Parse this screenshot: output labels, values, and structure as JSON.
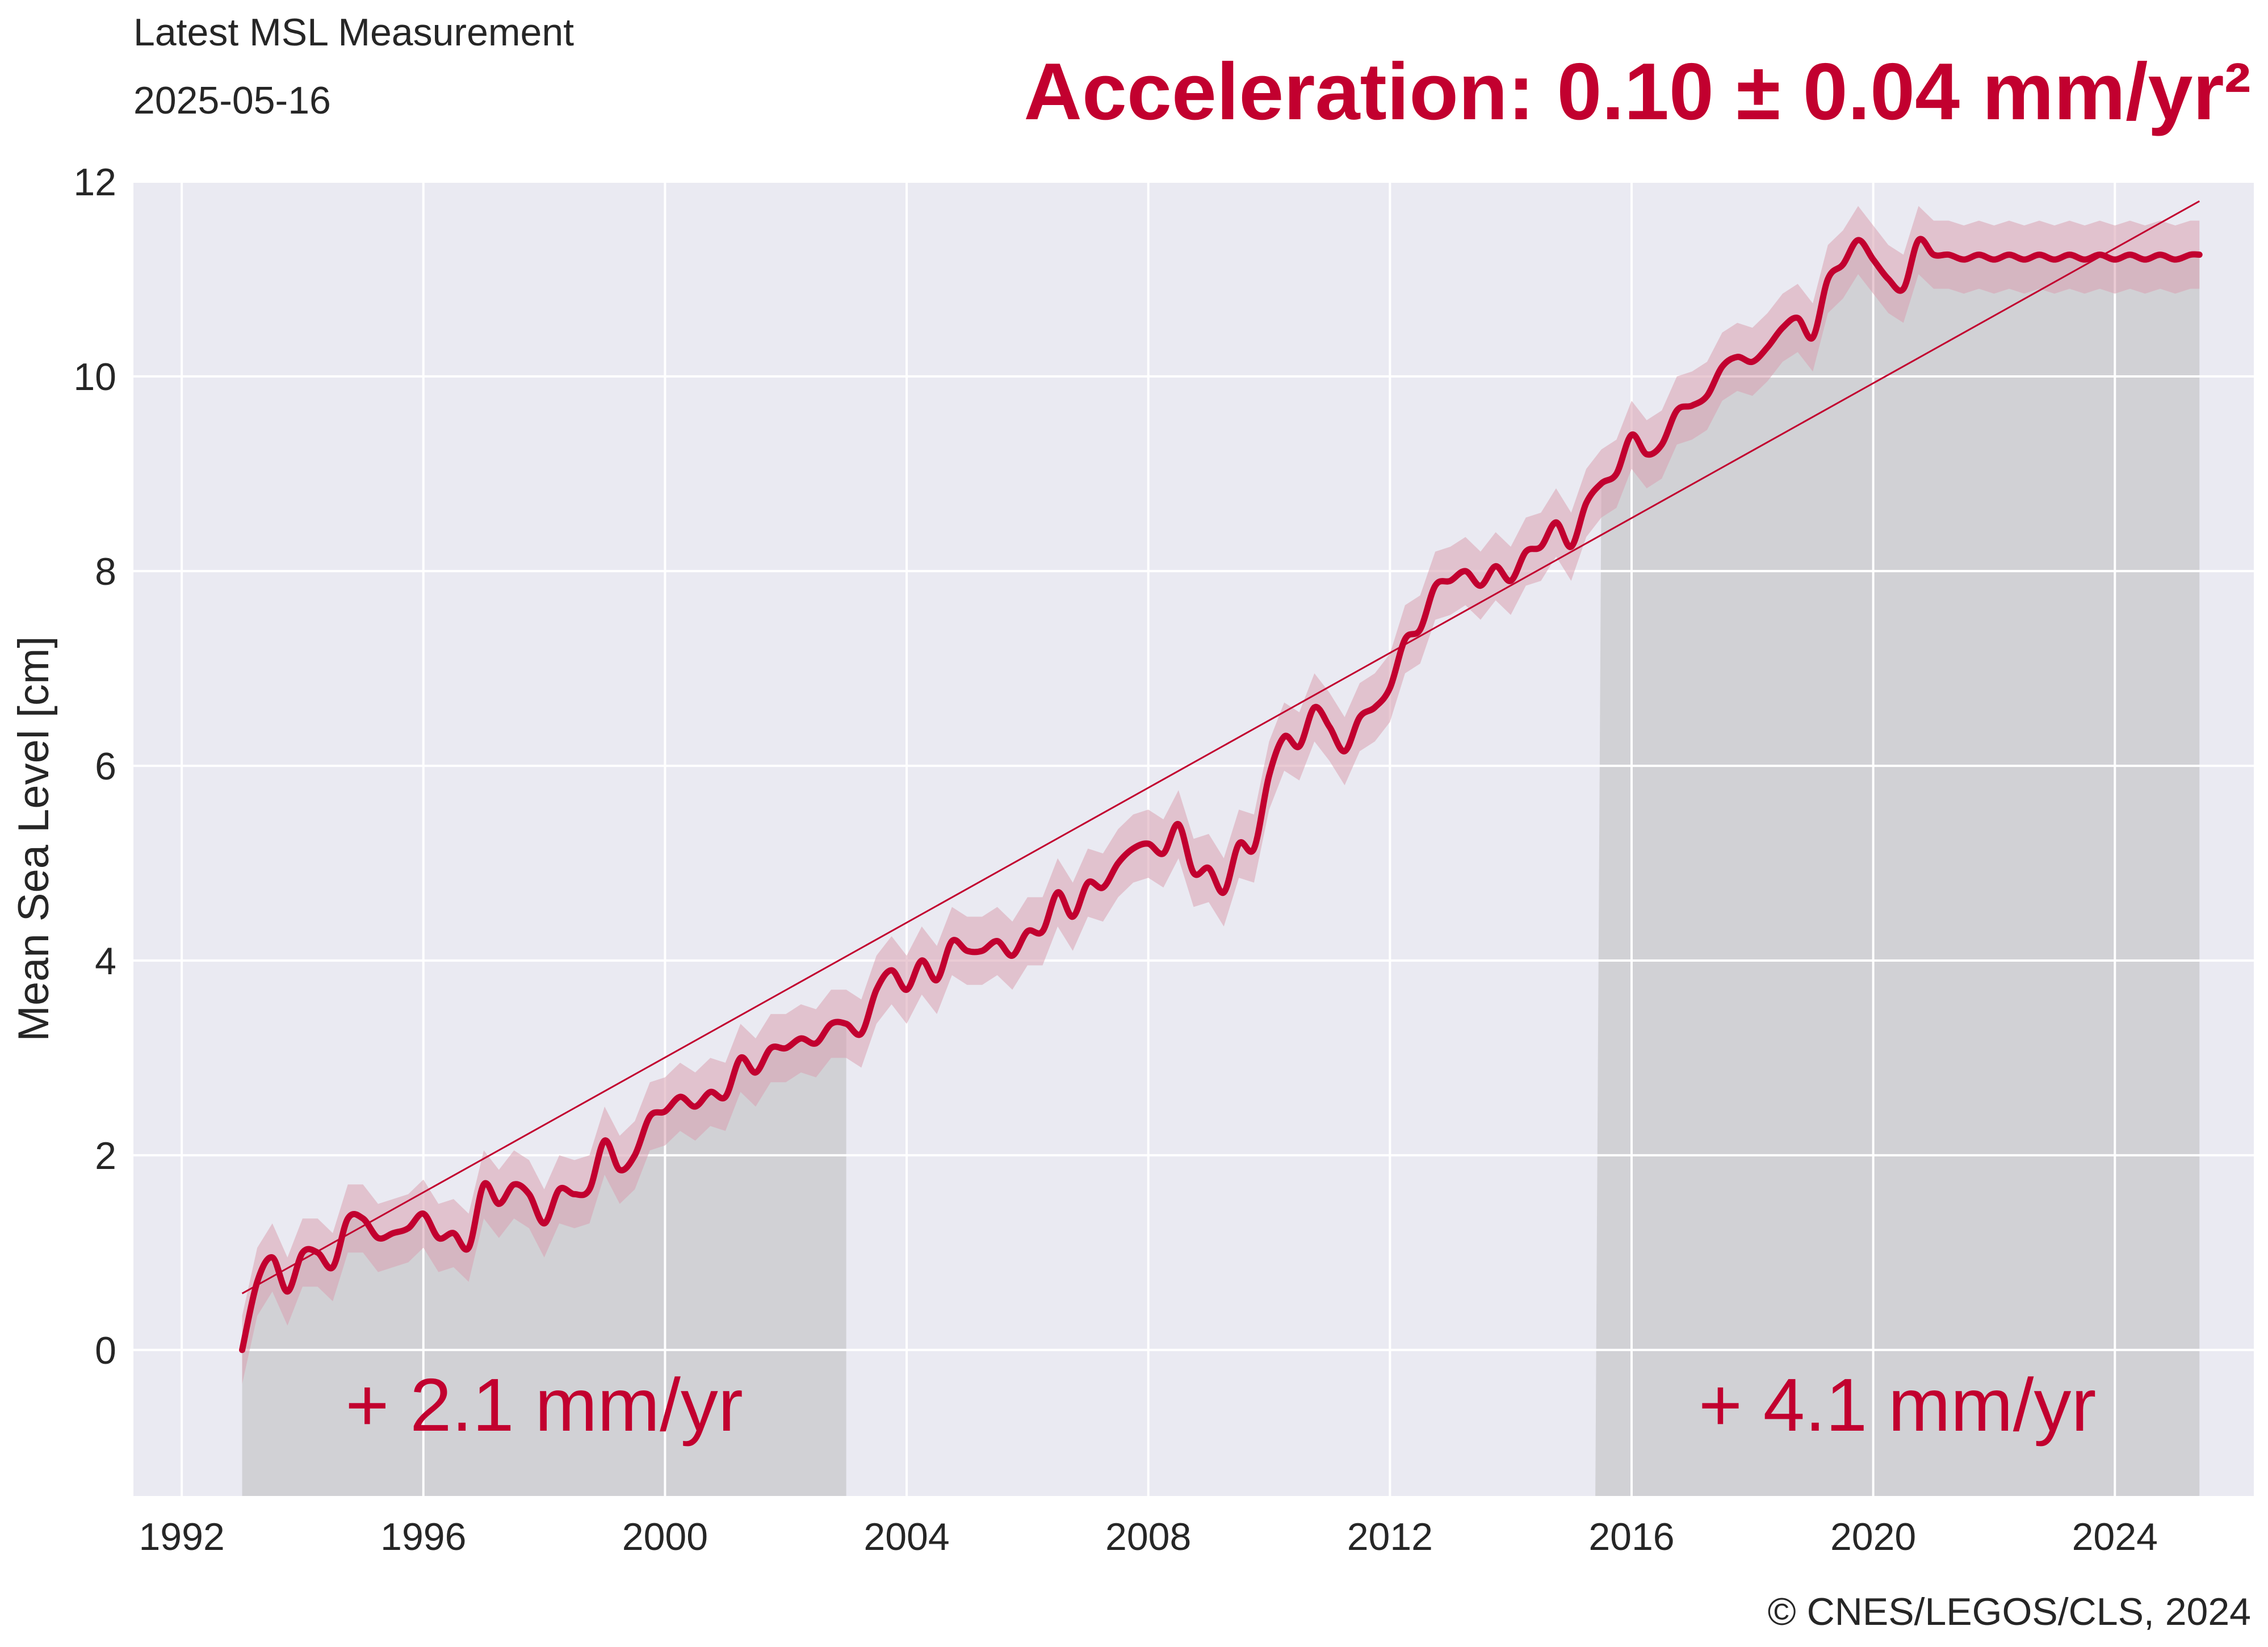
{
  "header": {
    "title": "Latest MSL Measurement",
    "date": "2025-05-16",
    "acceleration": "Acceleration: 0.10 ± 0.04 mm/yr²",
    "copyright": "© CNES/LEGOS/CLS, 2024"
  },
  "colors": {
    "accent": "#c2002f",
    "band": "#d9a0b1",
    "plot_background": "#eaeaf2",
    "grid": "#ffffff",
    "shade": "#d1d1d5"
  },
  "chart_data": {
    "type": "line",
    "title": "",
    "xlabel": "",
    "ylabel": "Mean Sea Level [cm]",
    "xlim": [
      1991.2,
      2026.3
    ],
    "ylim": [
      -1.5,
      12
    ],
    "xticks": [
      1992,
      1996,
      2000,
      2004,
      2008,
      2012,
      2016,
      2020,
      2024
    ],
    "yticks": [
      0,
      2,
      4,
      6,
      8,
      10,
      12
    ],
    "grid": true,
    "uncertainty_band": 0.35,
    "trend": {
      "x": [
        1993.0,
        2025.4
      ],
      "y": [
        0.58,
        11.8
      ]
    },
    "shaded_periods": [
      {
        "x_start": 1993.0,
        "x_end": 2003.0,
        "label": "+ 2.1 mm/yr"
      },
      {
        "x_start": 2015.4,
        "x_end": 2025.4,
        "label": "+ 4.1 mm/yr"
      }
    ],
    "series": [
      {
        "x": [
          1993.0,
          1993.25,
          1993.5,
          1993.75,
          1994.0,
          1994.25,
          1994.5,
          1994.75,
          1995.0,
          1995.25,
          1995.5,
          1995.75,
          1996.0,
          1996.25,
          1996.5,
          1996.75,
          1997.0,
          1997.25,
          1997.5,
          1997.75,
          1998.0,
          1998.25,
          1998.5,
          1998.75,
          1999.0,
          1999.25,
          1999.5,
          1999.75,
          2000.0,
          2000.25,
          2000.5,
          2000.75,
          2001.0,
          2001.25,
          2001.5,
          2001.75,
          2002.0,
          2002.25,
          2002.5,
          2002.75,
          2003.0,
          2003.25,
          2003.5,
          2003.75,
          2004.0,
          2004.25,
          2004.5,
          2004.75,
          2005.0,
          2005.25,
          2005.5,
          2005.75,
          2006.0,
          2006.25,
          2006.5,
          2006.75,
          2007.0,
          2007.25,
          2007.5,
          2007.75,
          2008.0,
          2008.25,
          2008.5,
          2008.75,
          2009.0,
          2009.25,
          2009.5,
          2009.75,
          2010.0,
          2010.25,
          2010.5,
          2010.75,
          2011.0,
          2011.25,
          2011.5,
          2011.75,
          2012.0,
          2012.25,
          2012.5,
          2012.75,
          2013.0,
          2013.25,
          2013.5,
          2013.75,
          2014.0,
          2014.25,
          2014.5,
          2014.75,
          2015.0,
          2015.25,
          2015.5,
          2015.75,
          2016.0,
          2016.25,
          2016.5,
          2016.75,
          2017.0,
          2017.25,
          2017.5,
          2017.75,
          2018.0,
          2018.25,
          2018.5,
          2018.75,
          2019.0,
          2019.25,
          2019.5,
          2019.75,
          2020.0,
          2020.25,
          2020.5,
          2020.75,
          2021.0,
          2021.25,
          2021.5,
          2021.75,
          2022.0,
          2022.25,
          2022.5,
          2022.75,
          2023.0,
          2023.25,
          2023.5,
          2023.75,
          2024.0,
          2024.25,
          2024.5,
          2024.75,
          2025.0,
          2025.25,
          2025.4
        ],
        "y": [
          0.0,
          0.7,
          0.95,
          0.6,
          1.0,
          1.0,
          0.85,
          1.35,
          1.35,
          1.15,
          1.2,
          1.25,
          1.4,
          1.15,
          1.2,
          1.05,
          1.7,
          1.5,
          1.7,
          1.6,
          1.3,
          1.65,
          1.6,
          1.65,
          2.15,
          1.85,
          2.0,
          2.4,
          2.45,
          2.6,
          2.5,
          2.65,
          2.6,
          3.0,
          2.85,
          3.1,
          3.1,
          3.2,
          3.15,
          3.35,
          3.35,
          3.25,
          3.7,
          3.9,
          3.7,
          4.0,
          3.8,
          4.2,
          4.1,
          4.1,
          4.2,
          4.05,
          4.3,
          4.3,
          4.7,
          4.45,
          4.8,
          4.75,
          5.0,
          5.15,
          5.2,
          5.1,
          5.4,
          4.9,
          4.95,
          4.7,
          5.2,
          5.15,
          5.9,
          6.3,
          6.2,
          6.6,
          6.4,
          6.15,
          6.5,
          6.6,
          6.8,
          7.3,
          7.4,
          7.85,
          7.9,
          8.0,
          7.85,
          8.05,
          7.9,
          8.2,
          8.25,
          8.5,
          8.25,
          8.7,
          8.9,
          9.0,
          9.4,
          9.2,
          9.3,
          9.65,
          9.7,
          9.8,
          10.1,
          10.2,
          10.15,
          10.3,
          10.5,
          10.6,
          10.4,
          11.0,
          11.15,
          11.4,
          11.2,
          11.0,
          10.9,
          11.4,
          11.25,
          11.25,
          11.2,
          11.25,
          11.2,
          11.25,
          11.2,
          11.25,
          11.2,
          11.25,
          11.2,
          11.25,
          11.2,
          11.25,
          11.2,
          11.25,
          11.2,
          11.25,
          11.25
        ]
      }
    ]
  }
}
